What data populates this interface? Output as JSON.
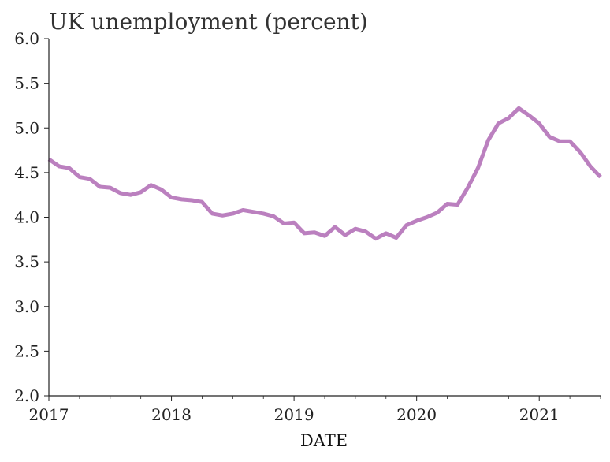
{
  "chart_data": {
    "type": "line",
    "title": "UK unemployment (percent)",
    "xlabel": "DATE",
    "ylabel": "",
    "xlim": [
      "2017-01",
      "2021-07"
    ],
    "ylim": [
      2.0,
      6.0
    ],
    "x_tick_labels": [
      "2017",
      "2018",
      "2019",
      "2020",
      "2021"
    ],
    "y_tick_labels": [
      "2.0",
      "2.5",
      "3.0",
      "3.5",
      "4.0",
      "4.5",
      "5.0",
      "5.5",
      "6.0"
    ],
    "grid": false,
    "line_color": "#bb80bf",
    "series": [
      {
        "x": [
          "2017-01",
          "2017-02",
          "2017-03",
          "2017-04",
          "2017-05",
          "2017-06",
          "2017-07",
          "2017-08",
          "2017-09",
          "2017-10",
          "2017-11",
          "2017-12",
          "2018-01",
          "2018-02",
          "2018-03",
          "2018-04",
          "2018-05",
          "2018-06",
          "2018-07",
          "2018-08",
          "2018-09",
          "2018-10",
          "2018-11",
          "2018-12",
          "2019-01",
          "2019-02",
          "2019-03",
          "2019-04",
          "2019-05",
          "2019-06",
          "2019-07",
          "2019-08",
          "2019-09",
          "2019-10",
          "2019-11",
          "2019-12",
          "2020-01",
          "2020-02",
          "2020-03",
          "2020-04",
          "2020-05",
          "2020-06",
          "2020-07",
          "2020-08",
          "2020-09",
          "2020-10",
          "2020-11",
          "2020-12",
          "2021-01",
          "2021-02",
          "2021-03",
          "2021-04",
          "2021-05",
          "2021-06",
          "2021-07"
        ],
        "values": [
          4.65,
          4.57,
          4.55,
          4.45,
          4.43,
          4.34,
          4.33,
          4.27,
          4.25,
          4.28,
          4.36,
          4.31,
          4.22,
          4.2,
          4.19,
          4.17,
          4.04,
          4.02,
          4.04,
          4.08,
          4.06,
          4.04,
          4.01,
          3.93,
          3.94,
          3.82,
          3.83,
          3.79,
          3.89,
          3.8,
          3.87,
          3.84,
          3.76,
          3.82,
          3.77,
          3.91,
          3.96,
          4.0,
          4.05,
          4.15,
          4.14,
          4.33,
          4.55,
          4.86,
          5.05,
          5.11,
          5.22,
          5.14,
          5.05,
          4.9,
          4.85,
          4.85,
          4.73,
          4.57,
          4.45
        ]
      }
    ]
  }
}
